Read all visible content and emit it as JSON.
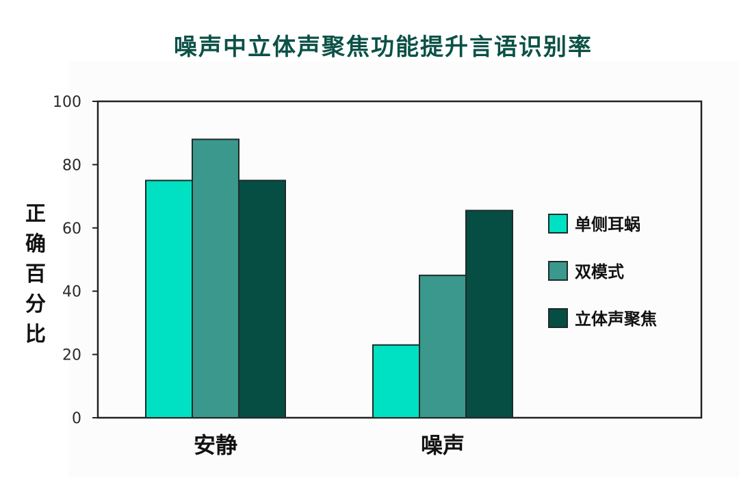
{
  "chart_data": {
    "type": "bar",
    "title": "噪声中立体声聚焦功能提升言语识别率",
    "ylabel": "正确百分比",
    "xlabel": "",
    "ylim": [
      0,
      100
    ],
    "yticks": [
      0,
      20,
      40,
      60,
      80,
      100
    ],
    "categories": [
      "安静",
      "噪声"
    ],
    "series": [
      {
        "name": "单侧耳蜗",
        "values": [
          75,
          23
        ],
        "color": "#00e0c2"
      },
      {
        "name": "双模式",
        "values": [
          88,
          45
        ],
        "color": "#3a988c"
      },
      {
        "name": "立体声聚焦",
        "values": [
          75,
          65.5
        ],
        "color": "#064d44"
      }
    ],
    "grid": false,
    "legend_position": "right"
  }
}
